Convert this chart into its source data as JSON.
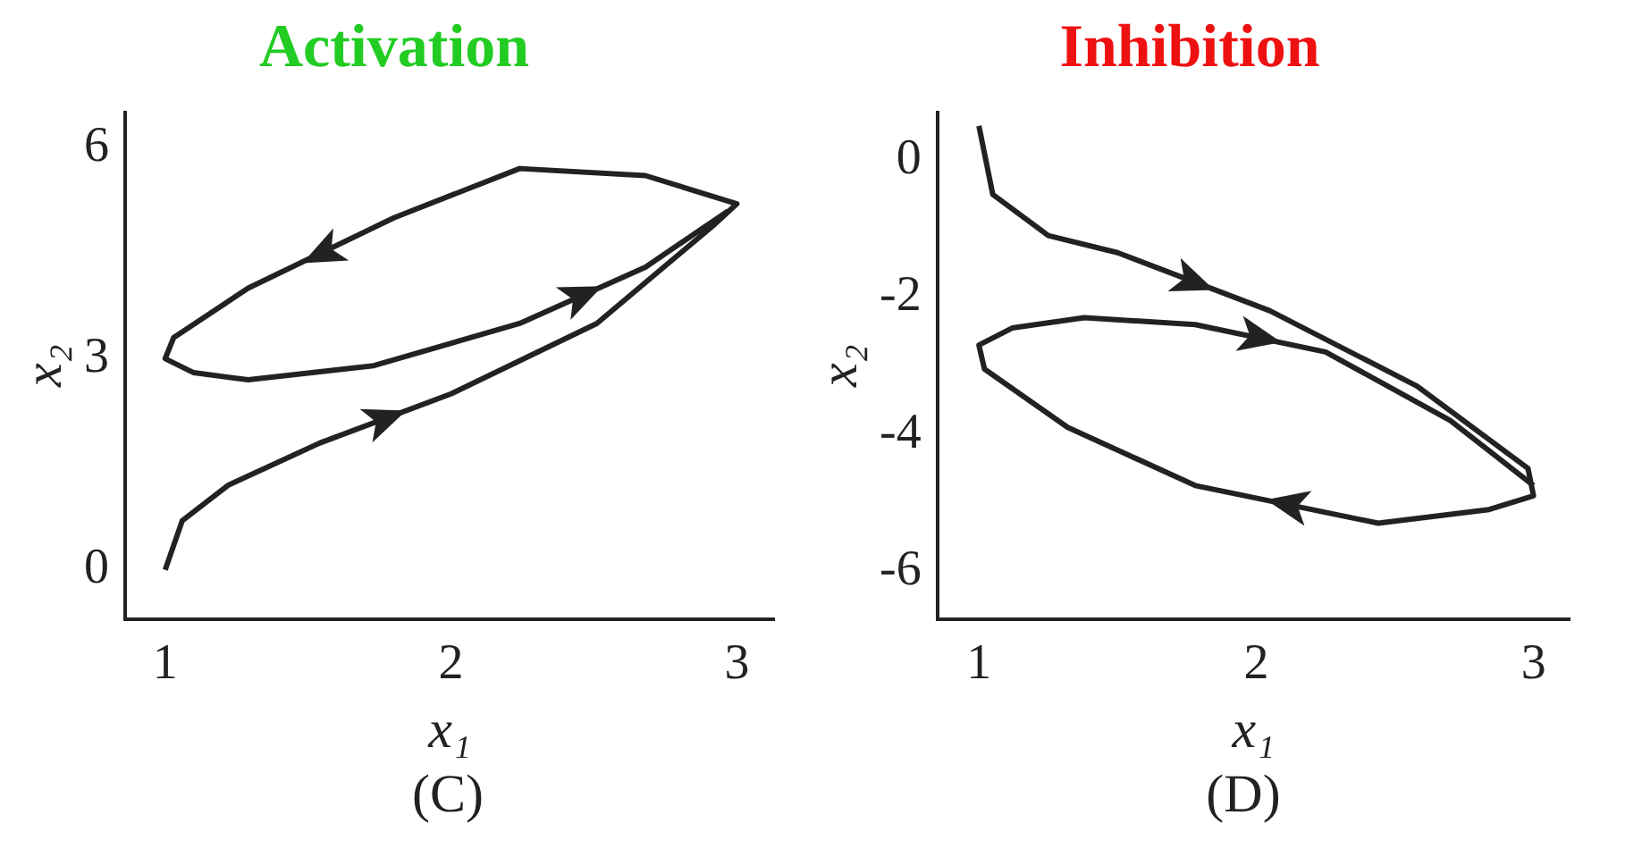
{
  "chart_data": [
    {
      "type": "line",
      "title": "Activation",
      "xlabel": "x₁",
      "ylabel": "x₂",
      "annotations": [
        "(C)"
      ],
      "xlim": [
        0.86,
        3.13
      ],
      "ylim": [
        -0.7,
        6.5
      ],
      "xticks": [
        1,
        2,
        3
      ],
      "yticks": [
        0,
        3,
        6
      ],
      "grid": false,
      "legend": false,
      "marker": "none",
      "line_style": "solid",
      "series": [
        {
          "color": "#222222",
          "x": [
            1,
            1.06,
            1.22,
            1.54,
            2,
            2.51,
            2.92,
            3,
            2.68,
            2.24,
            1.8,
            1.29,
            1.03,
            1,
            1.1,
            1.29,
            1.73,
            2.24,
            2.68,
            2.97
          ],
          "values": [
            0,
            0.7,
            1.2,
            1.8,
            2.5,
            3.5,
            4.9,
            5.2,
            5.6,
            5.7,
            5,
            4,
            3.3,
            3,
            2.8,
            2.7,
            2.9,
            3.5,
            4.3,
            5.1
          ]
        }
      ]
    },
    {
      "type": "line",
      "title": "Inhibition",
      "xlabel": "x₁",
      "ylabel": "x₂",
      "annotations": [
        "(D)"
      ],
      "xlim": [
        0.85,
        3.13
      ],
      "ylim": [
        -6.7,
        0.7
      ],
      "xticks": [
        1,
        2,
        3
      ],
      "yticks": [
        0,
        -2,
        -4,
        -6
      ],
      "grid": false,
      "legend": false,
      "marker": "none",
      "line_style": "solid",
      "series": [
        {
          "color": "#222222",
          "x": [
            1,
            1.05,
            1.25,
            1.5,
            2.05,
            2.58,
            2.98,
            3,
            2.84,
            2.44,
            1.78,
            1.32,
            1.02,
            1,
            1.12,
            1.38,
            1.78,
            2.25,
            2.7,
            3
          ],
          "values": [
            0.5,
            -0.5,
            -1.1,
            -1.35,
            -2.2,
            -3.3,
            -4.5,
            -4.9,
            -5.1,
            -5.3,
            -4.75,
            -3.9,
            -3.05,
            -2.7,
            -2.45,
            -2.3,
            -2.4,
            -2.8,
            -3.8,
            -4.75
          ]
        }
      ]
    }
  ]
}
